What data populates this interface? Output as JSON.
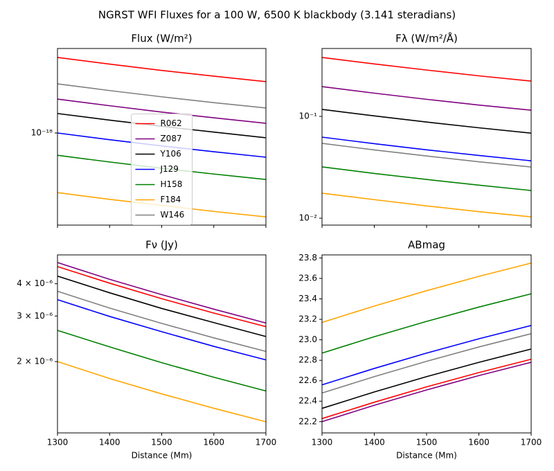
{
  "title": "NGRST WFI Fluxes for a 100 W, 6500 K blackbody (3.141 steradians)",
  "chart_data": [
    {
      "type": "line",
      "title": "Flux (W/m²)",
      "x": [
        1300,
        1400,
        1500,
        1600,
        1700
      ],
      "xlim": [
        1300,
        1700
      ],
      "xticks": [
        1300,
        1400,
        1500,
        1600,
        1700
      ],
      "xticklabels": false,
      "ylog": true,
      "ylim": [
        1.3e-19,
        6.5e-18
      ],
      "yticks": [
        {
          "value": 1e-18,
          "label": "10⁻¹⁸"
        }
      ],
      "legend": "center",
      "series": [
        {
          "name": "R062",
          "color": "red",
          "values": [
            5.33e-18,
            4.6e-18,
            4e-18,
            3.52e-18,
            3.12e-18
          ]
        },
        {
          "name": "Z087",
          "color": "purple",
          "values": [
            2.12e-18,
            1.83e-18,
            1.59e-18,
            1.4e-18,
            1.24e-18
          ]
        },
        {
          "name": "Y106",
          "color": "black",
          "values": [
            1.54e-18,
            1.33e-18,
            1.16e-18,
            1.02e-18,
            9e-19
          ]
        },
        {
          "name": "J129",
          "color": "blue",
          "values": [
            1e-18,
            8.62e-19,
            7.51e-19,
            6.6e-19,
            5.85e-19
          ]
        },
        {
          "name": "H158",
          "color": "green",
          "values": [
            6.1e-19,
            5.26e-19,
            4.58e-19,
            4.03e-19,
            3.57e-19
          ]
        },
        {
          "name": "F184",
          "color": "orange",
          "values": [
            2.67e-19,
            2.3e-19,
            2.01e-19,
            1.76e-19,
            1.56e-19
          ]
        },
        {
          "name": "W146",
          "color": "gray",
          "values": [
            2.97e-18,
            2.56e-18,
            2.23e-18,
            1.96e-18,
            1.74e-18
          ]
        }
      ]
    },
    {
      "type": "line",
      "title": "Fλ (W/m²/Å)",
      "x": [
        1300,
        1400,
        1500,
        1600,
        1700
      ],
      "xlim": [
        1300,
        1700
      ],
      "xticks": [
        1300,
        1400,
        1500,
        1600,
        1700
      ],
      "xticklabels": false,
      "ylog": true,
      "ylim": [
        0.00855,
        0.464
      ],
      "yticks": [
        {
          "value": 0.01,
          "label": "10⁻²"
        },
        {
          "value": 0.1,
          "label": "10⁻¹"
        }
      ],
      "series": [
        {
          "color": "red",
          "values": [
            0.379,
            0.327,
            0.285,
            0.25,
            0.222
          ]
        },
        {
          "color": "purple",
          "values": [
            0.196,
            0.169,
            0.147,
            0.129,
            0.115
          ]
        },
        {
          "color": "black",
          "values": [
            0.117,
            0.101,
            0.0879,
            0.0772,
            0.0684
          ]
        },
        {
          "color": "blue",
          "values": [
            0.0625,
            0.0539,
            0.0469,
            0.0413,
            0.0366
          ]
        },
        {
          "color": "green",
          "values": [
            0.0319,
            0.0275,
            0.024,
            0.0211,
            0.0187
          ]
        },
        {
          "color": "orange",
          "values": [
            0.0176,
            0.0152,
            0.0132,
            0.0116,
            0.0103
          ]
        },
        {
          "color": "gray",
          "values": [
            0.0543,
            0.0468,
            0.0408,
            0.0358,
            0.0318
          ]
        }
      ]
    },
    {
      "type": "line",
      "title": "Fν (Jy)",
      "xlabel": "Distance (Mm)",
      "x": [
        1300,
        1400,
        1500,
        1600,
        1700
      ],
      "xlim": [
        1300,
        1700
      ],
      "xticks": [
        1300,
        1400,
        1500,
        1600,
        1700
      ],
      "xticklabels": true,
      "ylog": true,
      "ylim": [
        1.06e-06,
        5.17e-06
      ],
      "yticks": [
        {
          "value": 2e-06,
          "label": "2 × 10⁻⁶"
        },
        {
          "value": 3e-06,
          "label": "3 × 10⁻⁶"
        },
        {
          "value": 4e-06,
          "label": "4 × 10⁻⁶"
        }
      ],
      "series": [
        {
          "color": "red",
          "values": [
            4.66e-06,
            4.02e-06,
            3.5e-06,
            3.08e-06,
            2.73e-06
          ]
        },
        {
          "color": "purple",
          "values": [
            4.83e-06,
            4.16e-06,
            3.63e-06,
            3.19e-06,
            2.82e-06
          ]
        },
        {
          "color": "black",
          "values": [
            4.28e-06,
            3.69e-06,
            3.21e-06,
            2.83e-06,
            2.5e-06
          ]
        },
        {
          "color": "blue",
          "values": [
            3.47e-06,
            2.99e-06,
            2.61e-06,
            2.29e-06,
            2.03e-06
          ]
        },
        {
          "color": "green",
          "values": [
            2.64e-06,
            2.28e-06,
            1.98e-06,
            1.74e-06,
            1.54e-06
          ]
        },
        {
          "color": "orange",
          "values": [
            2e-06,
            1.72e-06,
            1.5e-06,
            1.32e-06,
            1.17e-06
          ]
        },
        {
          "color": "gray",
          "values": [
            3.74e-06,
            3.22e-06,
            2.81e-06,
            2.47e-06,
            2.19e-06
          ]
        }
      ]
    },
    {
      "type": "line",
      "title": "ABmag",
      "xlabel": "Distance (Mm)",
      "x": [
        1300,
        1400,
        1500,
        1600,
        1700
      ],
      "xlim": [
        1300,
        1700
      ],
      "xticks": [
        1300,
        1400,
        1500,
        1600,
        1700
      ],
      "xticklabels": true,
      "ylog": false,
      "ylim": [
        22.09,
        23.83
      ],
      "yticks": [
        22.2,
        22.4,
        22.6,
        22.8,
        {
          "value": 23,
          "label": "23.0"
        },
        23.2,
        23.4,
        23.6,
        23.8
      ],
      "series": [
        {
          "color": "red",
          "values": [
            22.23,
            22.39,
            22.54,
            22.68,
            22.81
          ]
        },
        {
          "color": "purple",
          "values": [
            22.2,
            22.36,
            22.51,
            22.65,
            22.78
          ]
        },
        {
          "color": "black",
          "values": [
            22.33,
            22.49,
            22.64,
            22.78,
            22.91
          ]
        },
        {
          "color": "blue",
          "values": [
            22.56,
            22.72,
            22.87,
            23.01,
            23.14
          ]
        },
        {
          "color": "green",
          "values": [
            22.87,
            23.03,
            23.18,
            23.32,
            23.45
          ]
        },
        {
          "color": "orange",
          "values": [
            23.17,
            23.33,
            23.48,
            23.62,
            23.75
          ]
        },
        {
          "color": "gray",
          "values": [
            22.48,
            22.64,
            22.79,
            22.93,
            23.06
          ]
        }
      ]
    }
  ]
}
